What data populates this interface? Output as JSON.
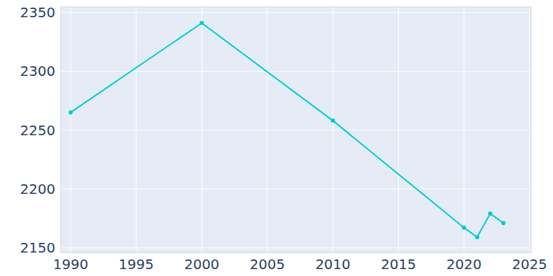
{
  "chart_data": {
    "type": "line",
    "x": [
      1990,
      2000,
      2010,
      2020,
      2021,
      2022,
      2023
    ],
    "values": [
      2265,
      2341,
      2258,
      2167,
      2159,
      2179,
      2171
    ],
    "color": "#00cccc",
    "marker": "circle",
    "xlim": [
      1989.25,
      2025.1
    ],
    "xticks": [
      1990,
      1995,
      2000,
      2005,
      2010,
      2015,
      2020,
      2025
    ],
    "ylim": [
      2145.9,
      2354.7
    ],
    "yticks": [
      2150,
      2200,
      2250,
      2300,
      2350
    ],
    "grid": true
  }
}
